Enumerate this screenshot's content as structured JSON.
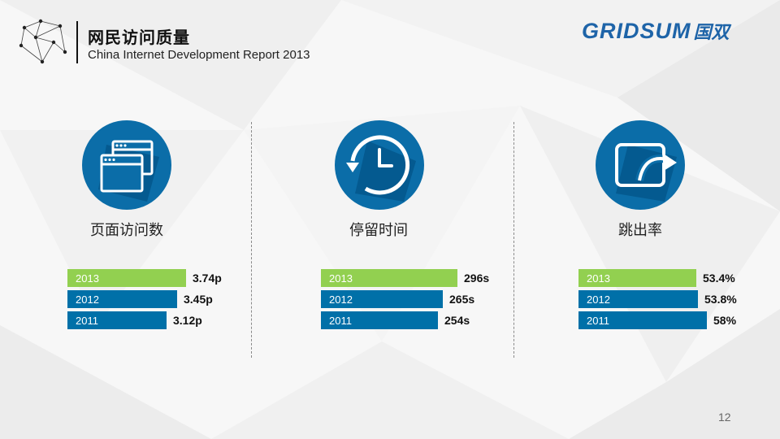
{
  "header": {
    "title": "网民访问质量",
    "subtitle": "China Internet Development Report 2013",
    "brand_text": "GRIDSUM",
    "brand_cn": "国双"
  },
  "colors": {
    "green": "#92d050",
    "blue": "#0070a8",
    "circle_dark": "#004a7c",
    "circle_main": "#0b6da8"
  },
  "panels": [
    {
      "label": "页面访问数",
      "icon": "browser-windows-icon"
    },
    {
      "label": "停留时间",
      "icon": "clock-history-icon"
    },
    {
      "label": "跳出率",
      "icon": "bounce-arrow-icon"
    }
  ],
  "chart_data": [
    {
      "type": "bar",
      "title": "页面访问数",
      "categories": [
        "2013",
        "2012",
        "2011"
      ],
      "values": [
        3.74,
        3.45,
        3.12
      ],
      "value_labels": [
        "3.74p",
        "3.45p",
        "3.12p"
      ],
      "bar_colors": [
        "#92d050",
        "#0070a8",
        "#0070a8"
      ],
      "orientation": "horizontal"
    },
    {
      "type": "bar",
      "title": "停留时间",
      "categories": [
        "2013",
        "2012",
        "2011"
      ],
      "values": [
        296,
        265,
        254
      ],
      "value_labels": [
        "296s",
        "265s",
        "254s"
      ],
      "bar_colors": [
        "#92d050",
        "#0070a8",
        "#0070a8"
      ],
      "orientation": "horizontal"
    },
    {
      "type": "bar",
      "title": "跳出率",
      "categories": [
        "2013",
        "2012",
        "2011"
      ],
      "values": [
        53.4,
        53.8,
        58
      ],
      "value_labels": [
        "53.4%",
        "53.8%",
        "58%"
      ],
      "bar_colors": [
        "#92d050",
        "#0070a8",
        "#0070a8"
      ],
      "orientation": "horizontal"
    }
  ],
  "footer": {
    "page_number": "12"
  }
}
